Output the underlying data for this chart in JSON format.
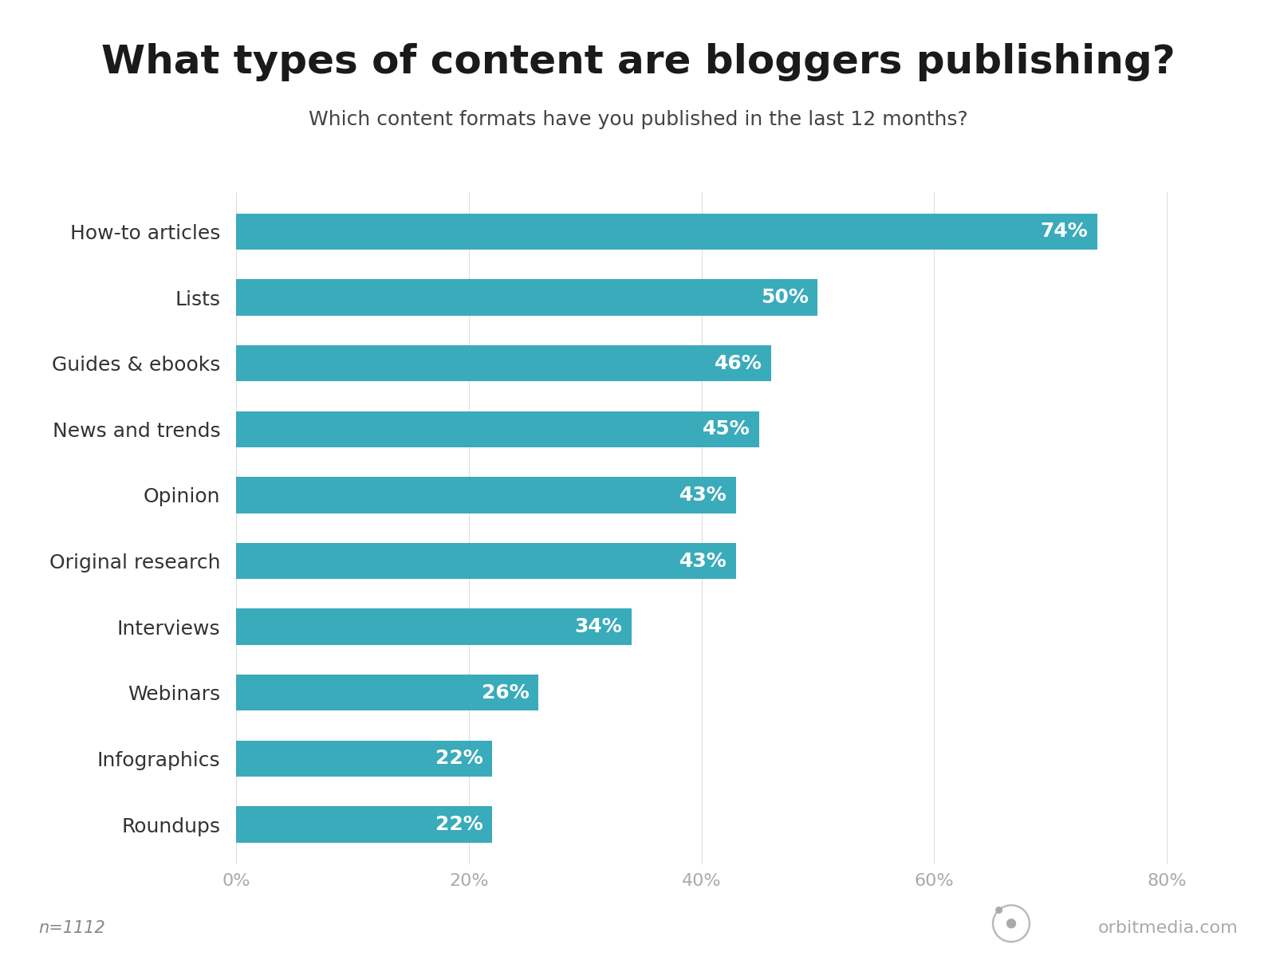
{
  "title": "What types of content are bloggers publishing?",
  "subtitle": "Which content formats have you published in the last 12 months?",
  "categories": [
    "How-to articles",
    "Lists",
    "Guides & ebooks",
    "News and trends",
    "Opinion",
    "Original research",
    "Interviews",
    "Webinars",
    "Infographics",
    "Roundups"
  ],
  "values": [
    74,
    50,
    46,
    45,
    43,
    43,
    34,
    26,
    22,
    22
  ],
  "bar_color": "#3aabba",
  "label_color": "#ffffff",
  "title_color": "#1a1a1a",
  "subtitle_color": "#444444",
  "category_color": "#333333",
  "tick_color": "#aaaaaa",
  "grid_color": "#dddddd",
  "bg_color": "#ffffff",
  "n_label": "n=1112",
  "watermark": "orbitmedia.com",
  "xlim": [
    0,
    85
  ],
  "xticks": [
    0,
    20,
    40,
    60,
    80
  ],
  "xtick_labels": [
    "0%",
    "20%",
    "40%",
    "60%",
    "80%"
  ],
  "title_fontsize": 36,
  "subtitle_fontsize": 18,
  "category_fontsize": 18,
  "value_fontsize": 18,
  "tick_fontsize": 16,
  "n_fontsize": 15,
  "watermark_fontsize": 16,
  "bar_height": 0.55
}
